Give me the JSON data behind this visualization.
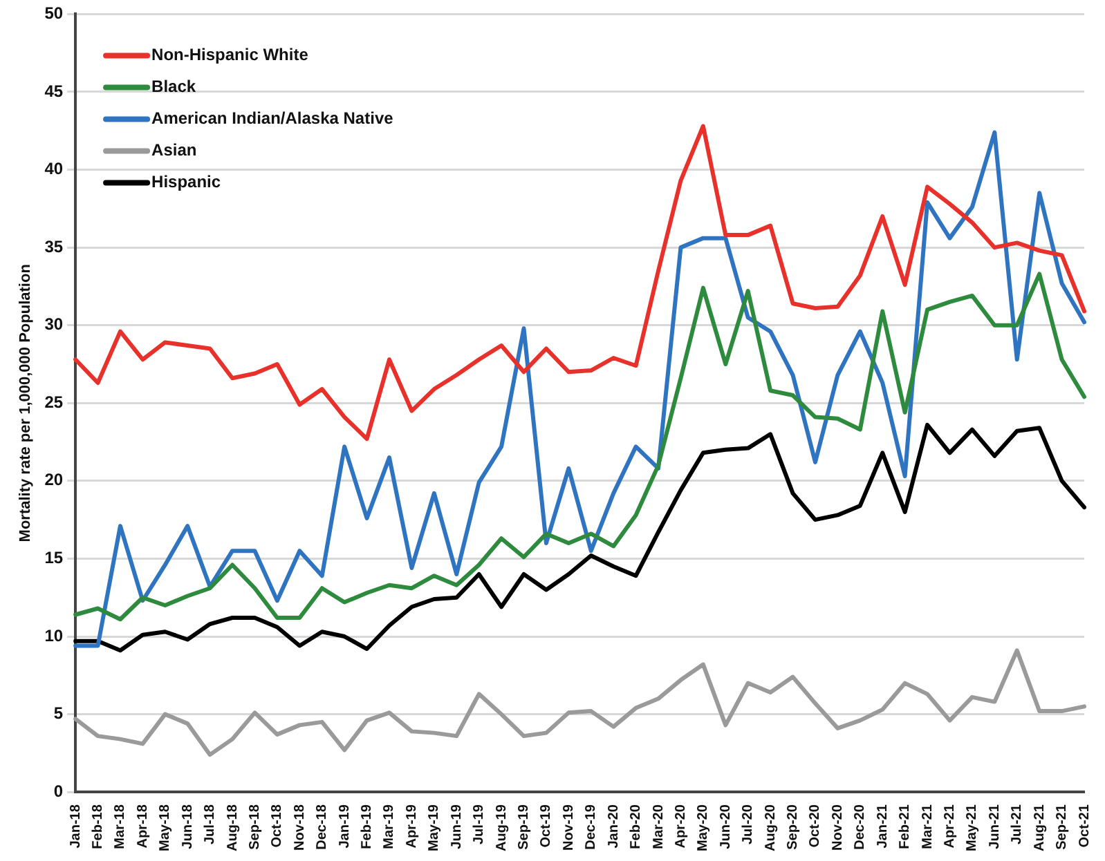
{
  "chart_data": {
    "type": "line",
    "ylabel": "Mortality rate per 1,000,000 Population",
    "categories": [
      "Jan-18",
      "Feb-18",
      "Mar-18",
      "Apr-18",
      "May-18",
      "Jun-18",
      "Jul-18",
      "Aug-18",
      "Sep-18",
      "Oct-18",
      "Nov-18",
      "Dec-18",
      "Jan-19",
      "Feb-19",
      "Mar-19",
      "Apr-19",
      "May-19",
      "Jun-19",
      "Jul-19",
      "Aug-19",
      "Sep-19",
      "Oct-19",
      "Nov-19",
      "Dec-19",
      "Jan-20",
      "Feb-20",
      "Mar-20",
      "Apr-20",
      "May-20",
      "Jun-20",
      "Jul-20",
      "Aug-20",
      "Sep-20",
      "Oct-20",
      "Nov-20",
      "Dec-20",
      "Jan-21",
      "Feb-21",
      "Mar-21",
      "Apr-21",
      "May-21",
      "Jun-21",
      "Jul-21",
      "Aug-21",
      "Sep-21",
      "Oct-21"
    ],
    "series": [
      {
        "name": "Non-Hispanic White",
        "color": "#e8312a",
        "values": [
          27.8,
          26.3,
          29.6,
          27.8,
          28.9,
          28.7,
          28.5,
          26.6,
          26.9,
          27.5,
          24.9,
          25.9,
          24.1,
          22.7,
          27.8,
          24.5,
          25.9,
          26.8,
          27.8,
          28.7,
          27.0,
          28.5,
          27.0,
          27.1,
          27.9,
          27.4,
          33.5,
          39.3,
          42.8,
          35.8,
          35.8,
          36.4,
          31.4,
          31.1,
          31.2,
          33.2,
          37.0,
          32.6,
          38.9,
          37.8,
          36.6,
          35.0,
          35.3,
          34.8,
          34.5,
          30.9
        ]
      },
      {
        "name": "Black",
        "color": "#2e8b3e",
        "values": [
          11.4,
          11.8,
          11.1,
          12.5,
          12.0,
          12.6,
          13.1,
          14.6,
          13.1,
          11.2,
          11.2,
          13.1,
          12.2,
          12.8,
          13.3,
          13.1,
          13.9,
          13.3,
          14.6,
          16.3,
          15.1,
          16.6,
          16.0,
          16.6,
          15.8,
          17.8,
          21.0,
          26.6,
          32.4,
          27.5,
          32.2,
          25.8,
          25.5,
          24.1,
          24.0,
          23.3,
          30.9,
          24.4,
          31.0,
          31.5,
          31.9,
          30.0,
          30.0,
          33.3,
          27.8,
          25.4
        ]
      },
      {
        "name": "American Indian/Alaska Native",
        "color": "#2f74c0",
        "values": [
          9.4,
          9.4,
          17.1,
          12.3,
          14.6,
          17.1,
          13.2,
          15.5,
          15.5,
          12.3,
          15.5,
          13.9,
          22.2,
          17.6,
          21.5,
          14.4,
          19.2,
          14.0,
          19.9,
          22.2,
          29.8,
          16.0,
          20.8,
          15.5,
          19.2,
          22.2,
          20.8,
          35.0,
          35.6,
          35.6,
          30.5,
          29.6,
          26.8,
          21.2,
          26.8,
          29.6,
          26.3,
          20.3,
          37.9,
          35.6,
          37.6,
          42.4,
          27.8,
          38.5,
          32.7,
          30.2
        ]
      },
      {
        "name": "Asian",
        "color": "#9a9a9a",
        "values": [
          4.7,
          3.6,
          3.4,
          3.1,
          5.0,
          4.4,
          2.4,
          3.4,
          5.1,
          3.7,
          4.3,
          4.5,
          2.7,
          4.6,
          5.1,
          3.9,
          3.8,
          3.6,
          6.3,
          5.0,
          3.6,
          3.8,
          5.1,
          5.2,
          4.2,
          5.4,
          6.0,
          7.2,
          8.2,
          4.3,
          7.0,
          6.4,
          7.4,
          5.7,
          4.1,
          4.6,
          5.3,
          7.0,
          6.3,
          4.6,
          6.1,
          5.8,
          9.1,
          5.2,
          5.2,
          5.5
        ]
      },
      {
        "name": "Hispanic",
        "color": "#000000",
        "values": [
          9.7,
          9.7,
          9.1,
          10.1,
          10.3,
          9.8,
          10.8,
          11.2,
          11.2,
          10.6,
          9.4,
          10.3,
          10.0,
          9.2,
          10.7,
          11.9,
          12.4,
          12.5,
          14.0,
          11.9,
          14.0,
          13.0,
          14.0,
          15.2,
          14.5,
          13.9,
          16.7,
          19.4,
          21.8,
          22.0,
          22.1,
          23.0,
          19.2,
          17.5,
          17.8,
          18.4,
          21.8,
          18.0,
          23.6,
          21.8,
          23.3,
          21.6,
          23.2,
          23.4,
          20.0,
          18.3
        ]
      }
    ],
    "ylim": [
      0,
      50
    ],
    "yticks": [
      0,
      5,
      10,
      15,
      20,
      25,
      30,
      35,
      40,
      45,
      50
    ],
    "grid": "y",
    "legend": "top left",
    "marker": "none",
    "line_style": "solid"
  }
}
